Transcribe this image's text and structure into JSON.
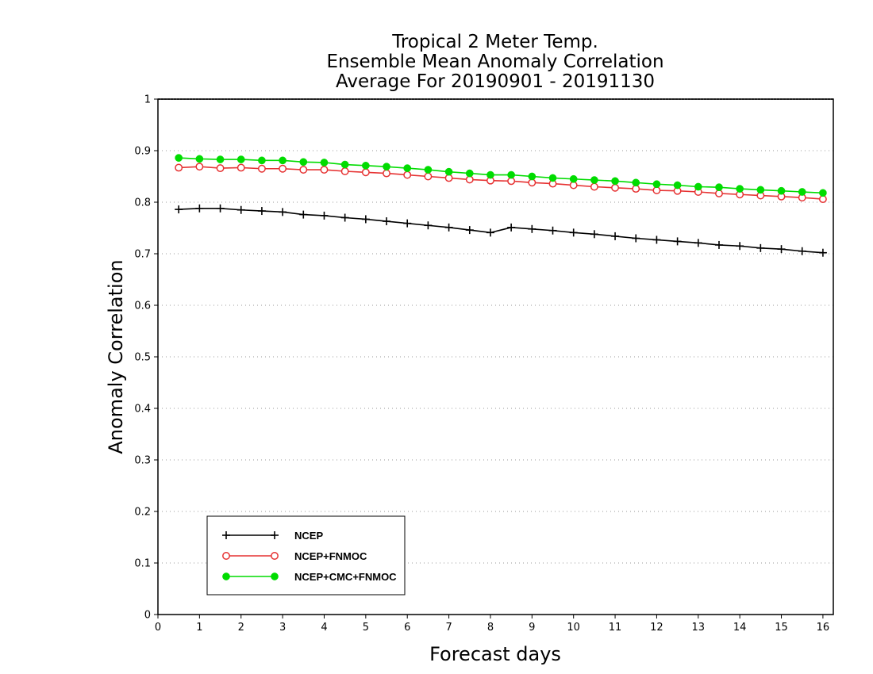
{
  "chart_data": {
    "type": "line",
    "title": [
      "Tropical 2 Meter Temp.",
      "Ensemble Mean Anomaly Correlation",
      "Average For 20190901 - 20191130"
    ],
    "xlabel": "Forecast days",
    "ylabel": "Anomaly Correlation",
    "xlim": [
      0,
      16.25
    ],
    "ylim": [
      0,
      1
    ],
    "xticks": [
      0,
      1,
      2,
      3,
      4,
      5,
      6,
      7,
      8,
      9,
      10,
      11,
      12,
      13,
      14,
      15,
      16
    ],
    "yticks": [
      0,
      0.1,
      0.2,
      0.3,
      0.4,
      0.5,
      0.6,
      0.7,
      0.8,
      0.9,
      1
    ],
    "ytick_labels": [
      "0",
      "0.1",
      "0.2",
      "0.3",
      "0.4",
      "0.5",
      "0.6",
      "0.7",
      "0.8",
      "0.9",
      "1"
    ],
    "grid": "horizontal dotted",
    "legend_position": "bottom-left",
    "x": [
      0.5,
      1,
      1.5,
      2,
      2.5,
      3,
      3.5,
      4,
      4.5,
      5,
      5.5,
      6,
      6.5,
      7,
      7.5,
      8,
      8.5,
      9,
      9.5,
      10,
      10.5,
      11,
      11.5,
      12,
      12.5,
      13,
      13.5,
      14,
      14.5,
      15,
      15.5,
      16
    ],
    "series": [
      {
        "name": "NCEP",
        "color": "#000000",
        "marker": "plus",
        "values": [
          0.786,
          0.788,
          0.788,
          0.785,
          0.783,
          0.781,
          0.776,
          0.774,
          0.77,
          0.767,
          0.763,
          0.759,
          0.755,
          0.751,
          0.746,
          0.741,
          0.751,
          0.748,
          0.745,
          0.741,
          0.738,
          0.734,
          0.73,
          0.727,
          0.724,
          0.721,
          0.717,
          0.715,
          0.711,
          0.709,
          0.705,
          0.702
        ]
      },
      {
        "name": "NCEP+FNMOC",
        "color": "#e63232",
        "marker": "open-circle",
        "values": [
          0.867,
          0.869,
          0.866,
          0.867,
          0.865,
          0.865,
          0.863,
          0.863,
          0.86,
          0.858,
          0.856,
          0.853,
          0.85,
          0.847,
          0.844,
          0.842,
          0.841,
          0.838,
          0.836,
          0.833,
          0.83,
          0.828,
          0.826,
          0.823,
          0.822,
          0.82,
          0.817,
          0.815,
          0.813,
          0.811,
          0.809,
          0.806
        ]
      },
      {
        "name": "NCEP+CMC+FNMOC",
        "color": "#00dc00",
        "marker": "filled-circle",
        "values": [
          0.886,
          0.884,
          0.883,
          0.883,
          0.881,
          0.881,
          0.878,
          0.877,
          0.873,
          0.871,
          0.869,
          0.866,
          0.863,
          0.859,
          0.856,
          0.853,
          0.853,
          0.85,
          0.847,
          0.845,
          0.843,
          0.841,
          0.838,
          0.835,
          0.833,
          0.83,
          0.829,
          0.826,
          0.824,
          0.822,
          0.82,
          0.818
        ]
      }
    ]
  }
}
